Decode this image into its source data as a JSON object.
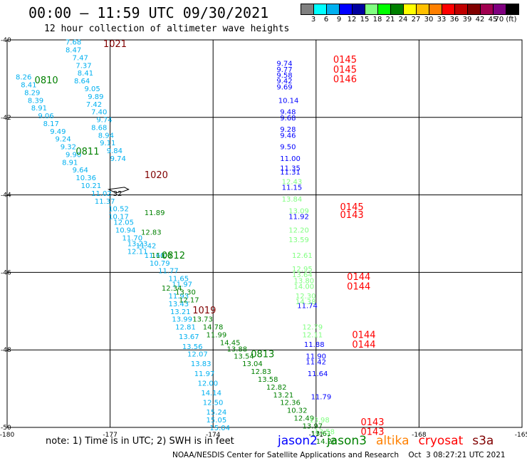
{
  "title": "00:00 – 11:59 UTC 09/30/2021",
  "subtitle": "12 hour collection of altimeter wave heights",
  "colorbar": {
    "colors": [
      "#808080",
      "#00ffff",
      "#00b0f0",
      "#0000ff",
      "#0000a0",
      "#80ff80",
      "#00ff00",
      "#008000",
      "#ffff00",
      "#ffc000",
      "#ff8000",
      "#ff0000",
      "#c00000",
      "#800000",
      "#a00050",
      "#800080",
      "#000000"
    ],
    "labels": [
      "3",
      "6",
      "9",
      "12",
      "15",
      "18",
      "21",
      "24",
      "27",
      "30",
      "33",
      "36",
      "39",
      "42",
      "45",
      "70 (ft)"
    ]
  },
  "axes": {
    "left_labels": [
      "-40",
      "-42",
      "-44",
      "-46",
      "-48",
      "-50"
    ],
    "left_values": [
      -40,
      -42,
      -44,
      -46,
      -48,
      -50
    ],
    "bottom_labels": [
      "-180",
      "-177",
      "-174",
      "-171",
      "-168",
      "-165"
    ],
    "bottom_values": [
      -180,
      -177,
      -174,
      -171,
      -168,
      -165
    ]
  },
  "tracks": [
    {
      "satellite": "s3a",
      "color": "#00b0f0",
      "labels": [
        {
          "time": "1021",
          "lon": -177.2,
          "lat": -40.09,
          "color": "#800000"
        },
        {
          "time": "0810",
          "lon": -179.2,
          "lat": -41.03,
          "color": "#008000"
        },
        {
          "time": "0811",
          "lon": -178.0,
          "lat": -42.87,
          "color": "#008000"
        },
        {
          "time": "1020",
          "lon": -176.0,
          "lat": -43.47,
          "color": "#800000"
        }
      ],
      "points": [
        {
          "v": "7.68",
          "lon": -178.3,
          "lat": -40.05
        },
        {
          "v": "8.47",
          "lon": -178.3,
          "lat": -40.25
        },
        {
          "v": "7.47",
          "lon": -178.1,
          "lat": -40.45
        },
        {
          "v": "7.37",
          "lon": -178.0,
          "lat": -40.65
        },
        {
          "v": "8.41",
          "lon": -177.95,
          "lat": -40.85
        },
        {
          "v": "8.64",
          "lon": -178.05,
          "lat": -41.05
        },
        {
          "v": "9.05",
          "lon": -177.75,
          "lat": -41.25
        },
        {
          "v": "9.89",
          "lon": -177.65,
          "lat": -41.45
        },
        {
          "v": "7.42",
          "lon": -177.7,
          "lat": -41.65
        },
        {
          "v": "7.40",
          "lon": -177.55,
          "lat": -41.85
        },
        {
          "v": "9.74",
          "lon": -177.4,
          "lat": -42.05
        },
        {
          "v": "8.68",
          "lon": -177.55,
          "lat": -42.25
        },
        {
          "v": "8.94",
          "lon": -177.35,
          "lat": -42.45
        },
        {
          "v": "9.11",
          "lon": -177.3,
          "lat": -42.65
        },
        {
          "v": "9.84",
          "lon": -177.1,
          "lat": -42.85
        },
        {
          "v": "9.74",
          "lon": -177.0,
          "lat": -43.05
        },
        {
          "v": "8.26",
          "lon": -179.75,
          "lat": -40.95
        },
        {
          "v": "8.41",
          "lon": -179.6,
          "lat": -41.15
        },
        {
          "v": "8.29",
          "lon": -179.5,
          "lat": -41.35
        },
        {
          "v": "8.39",
          "lon": -179.4,
          "lat": -41.55
        },
        {
          "v": "8.91",
          "lon": -179.3,
          "lat": -41.75
        },
        {
          "v": "9.06",
          "lon": -179.1,
          "lat": -41.95
        },
        {
          "v": "8.17",
          "lon": -178.95,
          "lat": -42.15
        },
        {
          "v": "9.49",
          "lon": -178.75,
          "lat": -42.35
        },
        {
          "v": "9.24",
          "lon": -178.6,
          "lat": -42.55
        },
        {
          "v": "9.32",
          "lon": -178.45,
          "lat": -42.75
        },
        {
          "v": "9.90",
          "lon": -178.3,
          "lat": -42.95
        },
        {
          "v": "8.91",
          "lon": -178.4,
          "lat": -43.15
        },
        {
          "v": "9.64",
          "lon": -178.1,
          "lat": -43.35
        },
        {
          "v": "10.36",
          "lon": -178.0,
          "lat": -43.55
        },
        {
          "v": "10.21",
          "lon": -177.85,
          "lat": -43.75
        },
        {
          "v": "11.02",
          "lon": -177.55,
          "lat": -43.95
        },
        {
          "v": "11.37",
          "lon": -177.45,
          "lat": -44.15
        },
        {
          "v": "10.52",
          "lon": -177.05,
          "lat": -44.35
        },
        {
          "v": "10.17",
          "lon": -177.05,
          "lat": -44.55
        },
        {
          "v": "12.05",
          "lon": -176.9,
          "lat": -44.7
        },
        {
          "v": "10.94",
          "lon": -176.85,
          "lat": -44.9
        },
        {
          "v": "11.70",
          "lon": -176.65,
          "lat": -45.1
        },
        {
          "v": "13.23",
          "lon": -176.5,
          "lat": -45.25
        },
        {
          "v": "12.11",
          "lon": -176.5,
          "lat": -45.45
        },
        {
          "v": "11.42",
          "lon": -176.25,
          "lat": -45.3
        },
        {
          "v": "11.60",
          "lon": -176.0,
          "lat": -45.55
        },
        {
          "v": "10.79",
          "lon": -175.85,
          "lat": -45.75
        },
        {
          "v": "11.77",
          "lon": -175.6,
          "lat": -45.95
        },
        {
          "v": "11.65",
          "lon": -175.3,
          "lat": -46.15
        },
        {
          "v": "11.97",
          "lon": -175.2,
          "lat": -46.3
        },
        {
          "v": "11.93",
          "lon": -175.3,
          "lat": -46.6
        },
        {
          "v": "13.43",
          "lon": -175.3,
          "lat": -46.8
        },
        {
          "v": "13.21",
          "lon": -175.25,
          "lat": -47.0
        },
        {
          "v": "13.99",
          "lon": -175.2,
          "lat": -47.2
        },
        {
          "v": "12.81",
          "lon": -175.1,
          "lat": -47.4
        },
        {
          "v": "13.67",
          "lon": -175.0,
          "lat": -47.65
        },
        {
          "v": "13.56",
          "lon": -174.9,
          "lat": -47.9
        },
        {
          "v": "12.07",
          "lon": -174.75,
          "lat": -48.1
        },
        {
          "v": "13.83",
          "lon": -174.65,
          "lat": -48.35
        },
        {
          "v": "11.97",
          "lon": -174.55,
          "lat": -48.6
        },
        {
          "v": "12.00",
          "lon": -174.45,
          "lat": -48.85
        },
        {
          "v": "14.14",
          "lon": -174.35,
          "lat": -49.1
        },
        {
          "v": "12.50",
          "lon": -174.3,
          "lat": -49.35
        },
        {
          "v": "15.24",
          "lon": -174.2,
          "lat": -49.6
        },
        {
          "v": "15.05",
          "lon": -174.2,
          "lat": -49.8
        },
        {
          "v": "15.04",
          "lon": -174.1,
          "lat": -50.0
        }
      ]
    },
    {
      "satellite": "jason3",
      "color": "#008000",
      "labels": [
        {
          "time": "1019",
          "lon": -174.6,
          "lat": -46.97,
          "color": "#800000"
        },
        {
          "time": "0812",
          "lon": -175.5,
          "lat": -45.55,
          "color": "#008000"
        },
        {
          "time": "0813",
          "lon": -172.9,
          "lat": -48.1,
          "color": "#008000"
        }
      ],
      "points": [
        {
          "v": "11.89",
          "lon": -176.0,
          "lat": -44.45
        },
        {
          "v": "12.83",
          "lon": -176.1,
          "lat": -44.95
        },
        {
          "v": "11.00",
          "lon": -175.8,
          "lat": -45.55
        },
        {
          "v": "13.30",
          "lon": -175.1,
          "lat": -46.5
        },
        {
          "v": "12.17",
          "lon": -175.0,
          "lat": -46.7
        },
        {
          "v": "12.34",
          "lon": -175.5,
          "lat": -46.4
        },
        {
          "v": "13.73",
          "lon": -174.6,
          "lat": -47.2
        },
        {
          "v": "14.78",
          "lon": -174.3,
          "lat": -47.4
        },
        {
          "v": "11.99",
          "lon": -174.2,
          "lat": -47.6
        },
        {
          "v": "14.45",
          "lon": -173.8,
          "lat": -47.8
        },
        {
          "v": "13.88",
          "lon": -173.6,
          "lat": -47.97
        },
        {
          "v": "13.54",
          "lon": -173.4,
          "lat": -48.15
        },
        {
          "v": "13.04",
          "lon": -173.15,
          "lat": -48.35
        },
        {
          "v": "12.83",
          "lon": -172.9,
          "lat": -48.55
        },
        {
          "v": "13.58",
          "lon": -172.7,
          "lat": -48.75
        },
        {
          "v": "12.82",
          "lon": -172.45,
          "lat": -48.95
        },
        {
          "v": "13.21",
          "lon": -172.25,
          "lat": -49.15
        },
        {
          "v": "12.36",
          "lon": -172.05,
          "lat": -49.35
        },
        {
          "v": "10.32",
          "lon": -171.85,
          "lat": -49.55
        },
        {
          "v": "12.49",
          "lon": -171.65,
          "lat": -49.75
        },
        {
          "v": "13.97",
          "lon": -171.4,
          "lat": -49.95
        },
        {
          "v": "13.61",
          "lon": -171.15,
          "lat": -50.15
        },
        {
          "v": "14.20",
          "lon": -171.0,
          "lat": -50.35
        }
      ]
    },
    {
      "satellite": "cryosat",
      "color": "#0000ff",
      "labels": [
        {
          "time": "0145",
          "lon": -170.5,
          "lat": -40.5,
          "color": "#ff0000"
        },
        {
          "time": "0145",
          "lon": -170.5,
          "lat": -40.75,
          "color": "#ff0000"
        },
        {
          "time": "0146",
          "lon": -170.5,
          "lat": -41.0,
          "color": "#ff0000"
        },
        {
          "time": "0145",
          "lon": -170.3,
          "lat": -44.3,
          "color": "#ff0000"
        },
        {
          "time": "0143",
          "lon": -170.3,
          "lat": -44.5,
          "color": "#ff0000"
        },
        {
          "time": "0144",
          "lon": -170.1,
          "lat": -46.1,
          "color": "#ff0000"
        },
        {
          "time": "0144",
          "lon": -170.1,
          "lat": -46.35,
          "color": "#ff0000"
        },
        {
          "time": "0144",
          "lon": -169.95,
          "lat": -47.6,
          "color": "#ff0000"
        },
        {
          "time": "0144",
          "lon": -169.95,
          "lat": -47.85,
          "color": "#ff0000"
        },
        {
          "time": "0143",
          "lon": -169.7,
          "lat": -49.85,
          "color": "#ff0000"
        },
        {
          "time": "0143",
          "lon": -169.7,
          "lat": -50.1,
          "color": "#ff0000"
        }
      ],
      "points": [
        {
          "v": "9.74",
          "lon": -172.15,
          "lat": -40.6
        },
        {
          "v": "9.77",
          "lon": -172.15,
          "lat": -40.75
        },
        {
          "v": "9.58",
          "lon": -172.15,
          "lat": -40.9
        },
        {
          "v": "9.42",
          "lon": -172.15,
          "lat": -41.05
        },
        {
          "v": "9.69",
          "lon": -172.15,
          "lat": -41.2
        },
        {
          "v": "10.14",
          "lon": -172.1,
          "lat": -41.55
        },
        {
          "v": "9.48",
          "lon": -172.05,
          "lat": -41.85
        },
        {
          "v": "9.68",
          "lon": -172.05,
          "lat": -42.0
        },
        {
          "v": "9.28",
          "lon": -172.05,
          "lat": -42.3
        },
        {
          "v": "9.46",
          "lon": -172.05,
          "lat": -42.45
        },
        {
          "v": "9.50",
          "lon": -172.05,
          "lat": -42.75
        },
        {
          "v": "11.00",
          "lon": -172.05,
          "lat": -43.05
        },
        {
          "v": "11.35",
          "lon": -172.05,
          "lat": -43.3
        },
        {
          "v": "11.31",
          "lon": -172.05,
          "lat": -43.4
        },
        {
          "v": "11.15",
          "lon": -172.0,
          "lat": -43.8
        },
        {
          "v": "11.92",
          "lon": -171.8,
          "lat": -44.55
        },
        {
          "v": "11.74",
          "lon": -171.55,
          "lat": -46.85
        },
        {
          "v": "11.88",
          "lon": -171.35,
          "lat": -47.85
        },
        {
          "v": "11.90",
          "lon": -171.3,
          "lat": -48.15
        },
        {
          "v": "11.42",
          "lon": -171.3,
          "lat": -48.3
        },
        {
          "v": "11.64",
          "lon": -171.25,
          "lat": -48.6
        },
        {
          "v": "11.79",
          "lon": -171.15,
          "lat": -49.2
        }
      ]
    },
    {
      "satellite": "jason2",
      "color": "#80ff80",
      "labels": [],
      "points": [
        {
          "v": "12.43",
          "lon": -172.0,
          "lat": -43.65
        },
        {
          "v": "13.84",
          "lon": -172.0,
          "lat": -44.1
        },
        {
          "v": "13.09",
          "lon": -171.8,
          "lat": -44.4
        },
        {
          "v": "12.20",
          "lon": -171.8,
          "lat": -44.9
        },
        {
          "v": "13.59",
          "lon": -171.8,
          "lat": -45.15
        },
        {
          "v": "12.61",
          "lon": -171.7,
          "lat": -45.55
        },
        {
          "v": "12.95",
          "lon": -171.7,
          "lat": -45.9
        },
        {
          "v": "13.64",
          "lon": -171.7,
          "lat": -46.05
        },
        {
          "v": "13.80",
          "lon": -171.65,
          "lat": -46.2
        },
        {
          "v": "14.00",
          "lon": -171.65,
          "lat": -46.35
        },
        {
          "v": "12.30",
          "lon": -171.6,
          "lat": -46.6
        },
        {
          "v": "14.38",
          "lon": -171.6,
          "lat": -46.75
        },
        {
          "v": "12.79",
          "lon": -171.4,
          "lat": -47.4
        },
        {
          "v": "12.11",
          "lon": -171.4,
          "lat": -47.6
        },
        {
          "v": "13.98",
          "lon": -171.2,
          "lat": -49.8
        },
        {
          "v": "13.58",
          "lon": -171.05,
          "lat": -50.1
        }
      ]
    }
  ],
  "note": "note: 1) Time is in UTC; 2) SWH is in feet",
  "legend": [
    {
      "name": "jason2",
      "color": "#0000ff"
    },
    {
      "name": "jason3",
      "color": "#008000"
    },
    {
      "name": "altika",
      "color": "#ff8000"
    },
    {
      "name": "cryosat",
      "color": "#ff0000"
    },
    {
      "name": "s3a",
      "color": "#800000"
    }
  ],
  "credit": "NOAA/NESDIS Center for Satellite Applications and Research    Oct  3 08:27:21 UTC 2021",
  "marker": {
    "label": "32",
    "lon": -176.75,
    "lat": -43.95
  }
}
